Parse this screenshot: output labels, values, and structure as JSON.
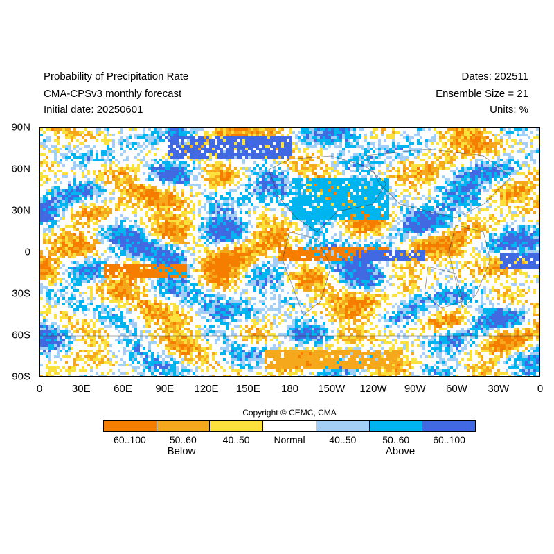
{
  "header": {
    "title": "Probability of Precipitation Rate",
    "model": "CMA-CPSv3 monthly forecast",
    "initial_date": "Initial date: 20250601",
    "dates": "Dates: 202511",
    "ensemble": "Ensemble Size = 21",
    "units": "Units: %"
  },
  "axes": {
    "lat_labels": [
      "90N",
      "60N",
      "30N",
      "0",
      "30S",
      "60S",
      "90S"
    ],
    "lon_labels": [
      "0",
      "30E",
      "60E",
      "90E",
      "120E",
      "150E",
      "180",
      "150W",
      "120W",
      "90W",
      "60W",
      "30W",
      "0"
    ]
  },
  "copyright": "Copyright © CEMC, CMA",
  "legend": {
    "items": [
      {
        "label": "60..100",
        "color": "#f57d00"
      },
      {
        "label": "50..60",
        "color": "#f5a81c"
      },
      {
        "label": "40..50",
        "color": "#fce03c"
      },
      {
        "label": "Normal",
        "color": "#ffffff"
      },
      {
        "label": "40..50",
        "color": "#a3cef5"
      },
      {
        "label": "50..60",
        "color": "#00b4f0"
      },
      {
        "label": "60..100",
        "color": "#4169e1"
      }
    ],
    "below_label": "Below",
    "above_label": "Above"
  },
  "map": {
    "lon_range": [
      0,
      360
    ],
    "lat_range": [
      -90,
      90
    ],
    "features": [
      {
        "name": "south-pacific-below-band",
        "category": 0,
        "lon": [
          170,
          250
        ],
        "lat": [
          -4,
          4
        ]
      },
      {
        "name": "south-indian-below-band",
        "category": 0,
        "lon": [
          45,
          105
        ],
        "lat": [
          -16,
          -8
        ]
      },
      {
        "name": "southern-ocean-below-band",
        "category": 1,
        "lon": [
          160,
          260
        ],
        "lat": [
          -82,
          -70
        ]
      },
      {
        "name": "east-pacific-above-band",
        "category": 6,
        "lon": [
          225,
          275
        ],
        "lat": [
          -5,
          2
        ]
      },
      {
        "name": "north-pacific-above",
        "category": 5,
        "lon": [
          180,
          250
        ],
        "lat": [
          25,
          55
        ]
      },
      {
        "name": "atlantic-above",
        "category": 6,
        "lon": [
          330,
          360
        ],
        "lat": [
          -10,
          0
        ]
      },
      {
        "name": "arctic-above",
        "category": 6,
        "lon": [
          90,
          180
        ],
        "lat": [
          70,
          85
        ]
      }
    ]
  }
}
